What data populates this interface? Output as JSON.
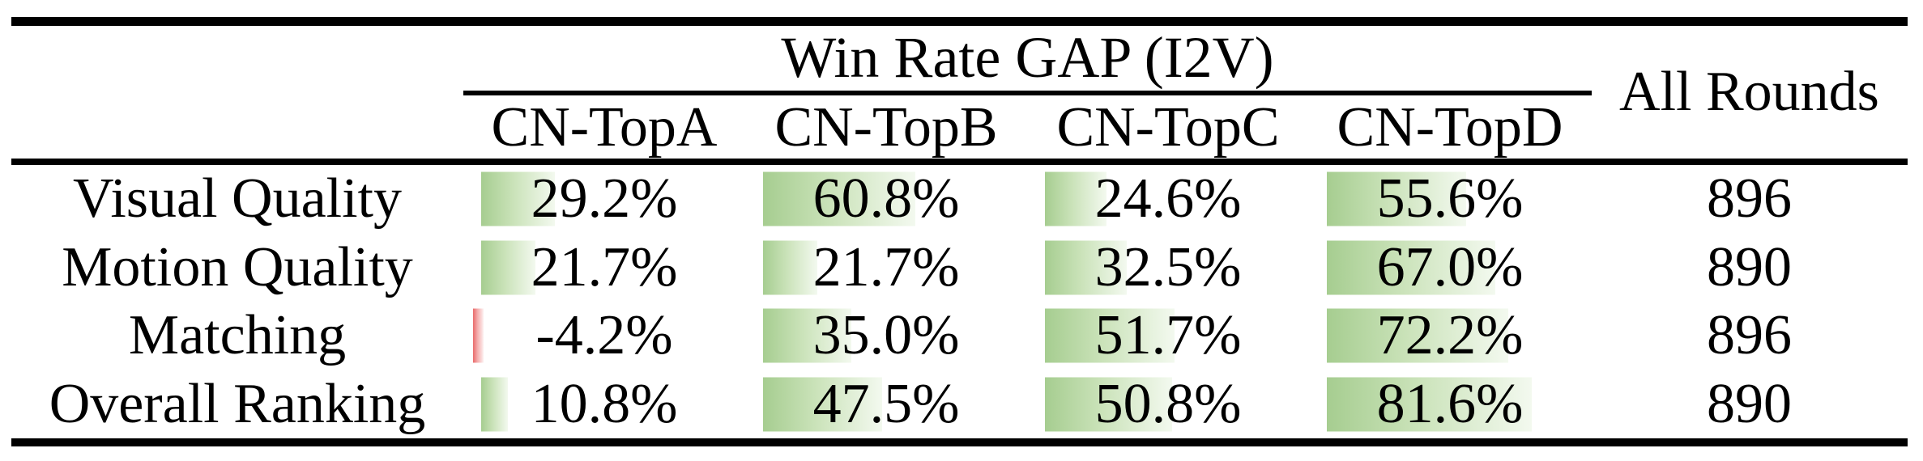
{
  "table": {
    "group_header": "Win Rate GAP (I2V)",
    "all_rounds_header": "All Rounds",
    "columns": [
      "CN-TopA",
      "CN-TopB",
      "CN-TopC",
      "CN-TopD"
    ],
    "rows": [
      {
        "label": "Visual Quality",
        "values": [
          "29.2%",
          "60.8%",
          "24.6%",
          "55.6%"
        ],
        "all_rounds": "896"
      },
      {
        "label": "Motion Quality",
        "values": [
          "21.7%",
          "21.7%",
          "32.5%",
          "67.0%"
        ],
        "all_rounds": "890"
      },
      {
        "label": "Matching",
        "values": [
          "-4.2%",
          "35.0%",
          "51.7%",
          "72.2%"
        ],
        "all_rounds": "896"
      },
      {
        "label": "Overall Ranking",
        "values": [
          "10.8%",
          "47.5%",
          "50.8%",
          "81.6%"
        ],
        "all_rounds": "890"
      }
    ],
    "colors": {
      "positive_bar_start": "#a6cd90",
      "positive_bar_end": "#f3f9ef",
      "negative_bar_start": "#e96a6a",
      "negative_bar_end": "#fdf2f2",
      "rule": "#000000"
    }
  },
  "chart_data": {
    "type": "table",
    "title": "Win Rate GAP (I2V)",
    "columns": [
      "CN-TopA",
      "CN-TopB",
      "CN-TopC",
      "CN-TopD",
      "All Rounds"
    ],
    "rows": [
      {
        "label": "Visual Quality",
        "win_rate_gap_pct": [
          29.2,
          60.8,
          24.6,
          55.6
        ],
        "all_rounds": 896
      },
      {
        "label": "Motion Quality",
        "win_rate_gap_pct": [
          21.7,
          21.7,
          32.5,
          67.0
        ],
        "all_rounds": 890
      },
      {
        "label": "Matching",
        "win_rate_gap_pct": [
          -4.2,
          35.0,
          51.7,
          72.2
        ],
        "all_rounds": 896
      },
      {
        "label": "Overall Ranking",
        "win_rate_gap_pct": [
          10.8,
          47.5,
          50.8,
          81.6
        ],
        "all_rounds": 890
      }
    ],
    "bars": "in-cell gradient data bars, width proportional to percentage, red for negative"
  }
}
